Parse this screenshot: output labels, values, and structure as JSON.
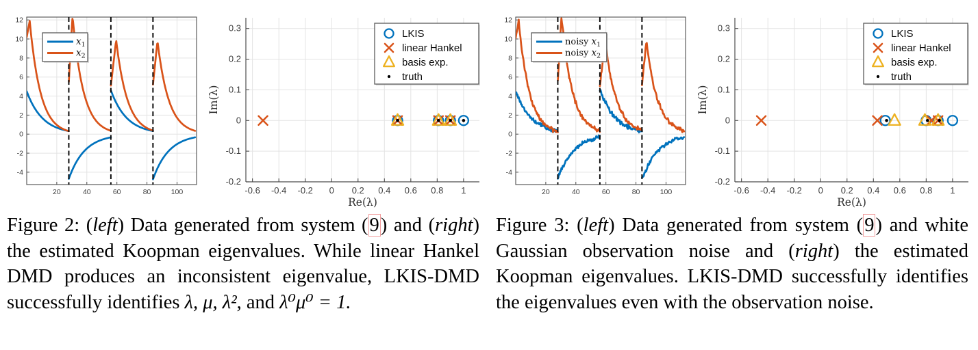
{
  "page": {
    "background": "#ffffff"
  },
  "colors": {
    "blue": "#0072BD",
    "orange": "#D95319",
    "yellow": "#EDB120",
    "truth": "#000000",
    "grid": "#e3e3e3",
    "axis": "#4d4d4d",
    "tick_text": "#3c3c3c",
    "dashed": "#0d0d0d",
    "legend_border": "#5a5a5a",
    "ref_box": "#f19c9c"
  },
  "figures": [
    {
      "name": "Figure 2",
      "caption": {
        "head": "Figure 2: (",
        "left_word": "left",
        "mid1": ") Data generated from system (",
        "ref": "9",
        "mid2": ") and (",
        "right_word": "right",
        "tail": ") the estimated Koopman eigenvalues. While linear Hankel DMD produces an inconsistent eigenvalue, LKIS-DMD successfully identifies ",
        "m1": "λ, μ, λ²",
        "and_word": ", and ",
        "m2": "λ⁰μ⁰ = 1."
      }
    },
    {
      "name": "Figure 3",
      "caption": {
        "head": "Figure 3: (",
        "left_word": "left",
        "mid1": ") Data generated from system (",
        "ref": "9",
        "mid2": ") and white Gaussian observation noise and (",
        "right_word": "right",
        "tail": ") the estimated Koopman eigenvalues. LKIS-DMD successfully identifies the eigenvalues even with the observation noise."
      }
    }
  ],
  "chart_data": [
    {
      "type": "line",
      "figure": "Figure 2 (left)",
      "xlim": [
        0,
        113
      ],
      "ylim": [
        -5.3,
        12.3
      ],
      "xticks": [
        20,
        40,
        60,
        80,
        100
      ],
      "yticks": [
        -4,
        -2,
        0,
        2,
        4,
        6,
        8,
        10,
        12
      ],
      "grid": true,
      "legend_position": "top-left",
      "series": [
        {
          "label": "x₁",
          "label_prefix": "",
          "label_var": "x",
          "label_sub": "1",
          "color": "#0072BD"
        },
        {
          "label": "x₂",
          "label_prefix": "",
          "label_var": "x",
          "label_sub": "2",
          "color": "#D95319"
        }
      ],
      "switch_times": [
        28,
        56,
        84
      ],
      "segments": [
        {
          "t": [
            0,
            28
          ],
          "x1": {
            "start": 4.5,
            "decay": 0.91
          },
          "x2": {
            "start": 10.2,
            "peak": 11.9,
            "peak_t": 2,
            "decay": 0.87
          }
        },
        {
          "t": [
            28,
            56
          ],
          "x1": {
            "start": -4.7,
            "decay": 0.91
          },
          "x2": {
            "start": 5.5,
            "peak": 12.4,
            "peak_t": 30.5,
            "decay": 0.87
          }
        },
        {
          "t": [
            56,
            84
          ],
          "x1": {
            "start": 4.6,
            "decay": 0.91
          },
          "x2": {
            "start": 5.1,
            "peak": 9.9,
            "peak_t": 59.5,
            "decay": 0.875
          }
        },
        {
          "t": [
            84,
            112
          ],
          "x1": {
            "start": -4.75,
            "decay": 0.91
          },
          "x2": {
            "start": 5.2,
            "peak": 9.8,
            "peak_t": 87,
            "decay": 0.875
          }
        }
      ],
      "noise": 0,
      "noise_seed": 1
    },
    {
      "type": "scatter",
      "figure": "Figure 2 (right)",
      "xlabel": "Re(λ)",
      "ylabel": "Im(λ)",
      "xlim": [
        -0.65,
        1.12
      ],
      "ylim": [
        -0.2,
        0.335
      ],
      "xticks": [
        -0.6,
        -0.4,
        -0.2,
        0,
        0.2,
        0.4,
        0.6,
        0.8,
        1
      ],
      "yticks": [
        -0.2,
        -0.1,
        0,
        0.1,
        0.2,
        0.3
      ],
      "grid": true,
      "legend_position": "top-right",
      "series": [
        {
          "label": "LKIS",
          "marker": "circle",
          "color": "#0072BD",
          "points": [
            [
              0.5,
              0
            ],
            [
              0.81,
              0
            ],
            [
              0.9,
              0
            ],
            [
              1,
              0
            ]
          ]
        },
        {
          "label": "linear Hankel",
          "marker": "x",
          "color": "#D95319",
          "points": [
            [
              -0.52,
              0
            ],
            [
              0.5,
              0
            ],
            [
              0.81,
              0
            ],
            [
              0.9,
              0
            ]
          ]
        },
        {
          "label": "basis exp.",
          "marker": "triangle",
          "color": "#EDB120",
          "points": [
            [
              0.5,
              0
            ],
            [
              0.81,
              0
            ],
            [
              0.9,
              0
            ]
          ]
        },
        {
          "label": "truth",
          "marker": "dot",
          "color": "#000000",
          "points": [
            [
              0.5,
              0
            ],
            [
              0.81,
              0
            ],
            [
              0.9,
              0
            ],
            [
              1,
              0
            ]
          ]
        }
      ]
    },
    {
      "type": "line",
      "figure": "Figure 3 (left)",
      "xlim": [
        0,
        113
      ],
      "ylim": [
        -5.3,
        12.3
      ],
      "xticks": [
        20,
        40,
        60,
        80,
        100
      ],
      "yticks": [
        -4,
        -2,
        0,
        2,
        4,
        6,
        8,
        10,
        12
      ],
      "grid": true,
      "legend_position": "top-left",
      "series": [
        {
          "label": "noisy x₁",
          "label_prefix": "noisy ",
          "label_var": "x",
          "label_sub": "1",
          "color": "#0072BD"
        },
        {
          "label": "noisy x₂",
          "label_prefix": "noisy ",
          "label_var": "x",
          "label_sub": "2",
          "color": "#D95319"
        }
      ],
      "switch_times": [
        28,
        56,
        84
      ],
      "segments": [
        {
          "t": [
            0,
            28
          ],
          "x1": {
            "start": 4.5,
            "decay": 0.91
          },
          "x2": {
            "start": 10.2,
            "peak": 11.9,
            "peak_t": 2,
            "decay": 0.87
          }
        },
        {
          "t": [
            28,
            56
          ],
          "x1": {
            "start": -4.7,
            "decay": 0.91
          },
          "x2": {
            "start": 5.5,
            "peak": 12.4,
            "peak_t": 30.5,
            "decay": 0.87
          }
        },
        {
          "t": [
            56,
            84
          ],
          "x1": {
            "start": 4.6,
            "decay": 0.91
          },
          "x2": {
            "start": 5.1,
            "peak": 9.9,
            "peak_t": 59.5,
            "decay": 0.875
          }
        },
        {
          "t": [
            84,
            112
          ],
          "x1": {
            "start": -4.75,
            "decay": 0.91
          },
          "x2": {
            "start": 5.2,
            "peak": 9.8,
            "peak_t": 87,
            "decay": 0.875
          }
        }
      ],
      "noise": 0.22,
      "noise_seed": 12
    },
    {
      "type": "scatter",
      "figure": "Figure 3 (right)",
      "xlabel": "Re(λ)",
      "ylabel": "Im(λ)",
      "xlim": [
        -0.65,
        1.12
      ],
      "ylim": [
        -0.2,
        0.335
      ],
      "xticks": [
        -0.6,
        -0.4,
        -0.2,
        0,
        0.2,
        0.4,
        0.6,
        0.8,
        1
      ],
      "yticks": [
        -0.2,
        -0.1,
        0,
        0.1,
        0.2,
        0.3
      ],
      "grid": true,
      "legend_position": "top-right",
      "series": [
        {
          "label": "LKIS",
          "marker": "circle",
          "color": "#0072BD",
          "points": [
            [
              0.49,
              0
            ],
            [
              0.8,
              0
            ],
            [
              0.89,
              0
            ],
            [
              1,
              0
            ]
          ]
        },
        {
          "label": "linear Hankel",
          "marker": "x",
          "color": "#D95319",
          "points": [
            [
              -0.45,
              0
            ],
            [
              0.43,
              0
            ],
            [
              0.84,
              0
            ],
            [
              0.89,
              0
            ]
          ]
        },
        {
          "label": "basis exp.",
          "marker": "triangle",
          "color": "#EDB120",
          "points": [
            [
              0.56,
              0
            ],
            [
              0.79,
              0
            ],
            [
              0.89,
              0
            ]
          ]
        },
        {
          "label": "truth",
          "marker": "dot",
          "color": "#000000",
          "points": [
            [
              0.5,
              0
            ],
            [
              0.81,
              0
            ],
            [
              0.9,
              0
            ]
          ]
        }
      ]
    }
  ]
}
